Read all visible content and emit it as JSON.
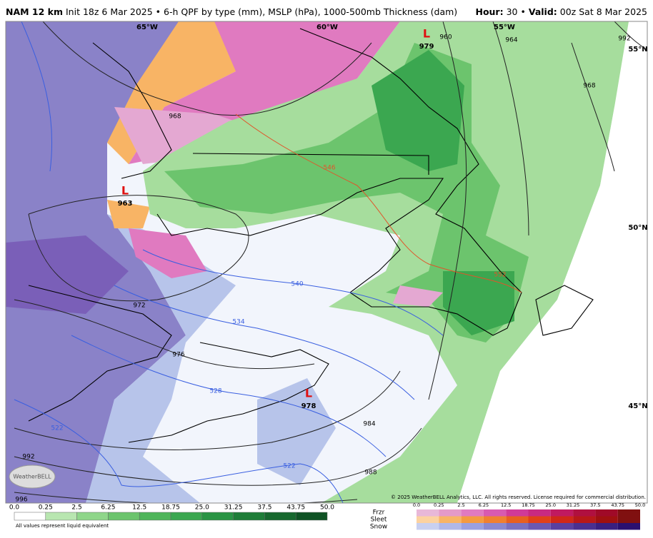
{
  "header": {
    "model": "NAM 12 km",
    "description": "Init 18z 6 Mar 2025 • 6-h QPF by type (mm), MSLP (hPa), 1000-500mb Thickness (dam)",
    "hour_label": "Hour:",
    "hour": "30",
    "separator": "•",
    "valid_label": "Valid:",
    "valid": "00z Sat 8 Mar 2025"
  },
  "map": {
    "longitude_labels": [
      "65°W",
      "60°W",
      "55°W"
    ],
    "latitude_labels": [
      "55°N",
      "50°N",
      "45°N"
    ],
    "lows": [
      {
        "symbol": "L",
        "pressure": "979"
      },
      {
        "symbol": "L",
        "pressure": "963"
      },
      {
        "symbol": "L",
        "pressure": "978"
      }
    ],
    "isobar_labels": [
      "968",
      "960",
      "964",
      "968",
      "992",
      "972",
      "976",
      "984",
      "988",
      "992",
      "996"
    ],
    "thickness_labels": [
      "546",
      "540",
      "534",
      "528",
      "522",
      "552",
      "522"
    ],
    "logo": "WeatherBELL",
    "copyright": "© 2025 WeatherBELL Analytics, LLC. All rights reserved. License required for commercial distribution."
  },
  "legend": {
    "rain_ticks": [
      "0.0",
      "0.25",
      "2.5",
      "6.25",
      "12.5",
      "18.75",
      "25.0",
      "31.25",
      "37.5",
      "43.75",
      "50.0"
    ],
    "note": "All values represent liquid equivalent",
    "types": [
      "Frzr",
      "Sleet",
      "Snow"
    ],
    "type_ticks": [
      "0.0",
      "0.25",
      "2.5",
      "6.25",
      "12.5",
      "18.75",
      "25.0",
      "31.25",
      "37.5",
      "43.75",
      "50.0"
    ]
  }
}
